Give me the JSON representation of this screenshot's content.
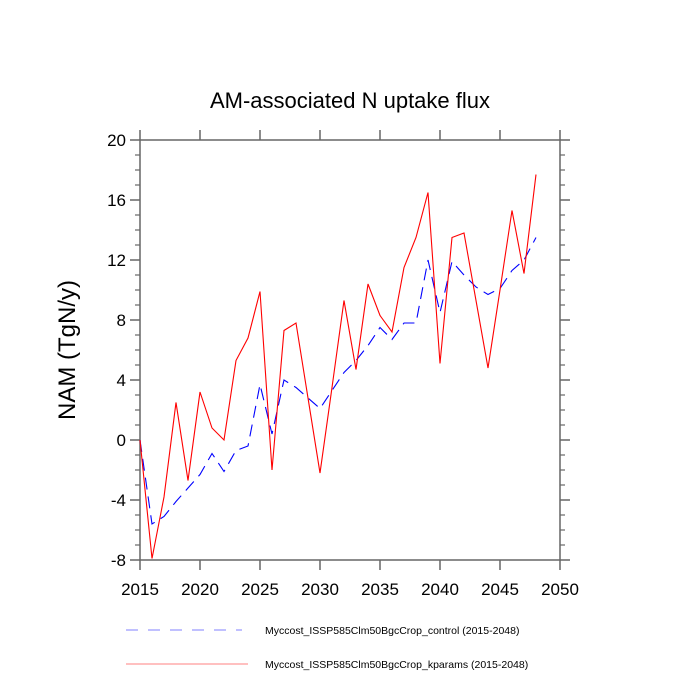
{
  "chart_data": {
    "type": "line",
    "title": "AM-associated N uptake flux",
    "xlabel": "",
    "ylabel": "NAM  (TgN/y)",
    "xlim": [
      2015,
      2050
    ],
    "ylim": [
      -8,
      20
    ],
    "x_ticks": [
      2015,
      2020,
      2025,
      2030,
      2035,
      2040,
      2045,
      2050
    ],
    "x_tick_labels": [
      "2015",
      "2020",
      "2025",
      "2030",
      "2035",
      "2040",
      "2045",
      "2050"
    ],
    "y_ticks": [
      -8,
      -4,
      0,
      4,
      8,
      12,
      16,
      20
    ],
    "y_tick_labels": [
      "-8",
      "-4",
      "0",
      "4",
      "8",
      "12",
      "16",
      "20"
    ],
    "grid": false,
    "legend_position": "bottom",
    "x": [
      2015,
      2016,
      2017,
      2018,
      2019,
      2020,
      2021,
      2022,
      2023,
      2024,
      2025,
      2026,
      2027,
      2028,
      2029,
      2030,
      2031,
      2032,
      2033,
      2034,
      2035,
      2036,
      2037,
      2038,
      2039,
      2040,
      2041,
      2042,
      2043,
      2044,
      2045,
      2046,
      2047,
      2048
    ],
    "series": [
      {
        "name": "Myccost_ISSP585Clm50BgcCrop_control (2015-2048)",
        "color": "#0000ff",
        "style": "dashed",
        "values": [
          0.0,
          -5.6,
          -5.1,
          -4.1,
          -3.2,
          -2.3,
          -0.9,
          -2.1,
          -0.7,
          -0.4,
          3.7,
          0.4,
          4.0,
          3.5,
          2.8,
          2.1,
          3.3,
          4.5,
          5.3,
          6.3,
          7.5,
          6.7,
          7.8,
          7.8,
          12.0,
          8.5,
          11.9,
          11.0,
          10.2,
          9.7,
          10.1,
          11.3,
          12.0,
          13.5
        ]
      },
      {
        "name": "Myccost_ISSP585Clm50BgcCrop_kparams (2015-2048)",
        "color": "#ff0000",
        "style": "solid",
        "values": [
          0.0,
          -7.9,
          -3.8,
          2.5,
          -2.7,
          3.2,
          0.8,
          0.0,
          5.3,
          6.8,
          9.9,
          -2.0,
          7.3,
          7.8,
          2.8,
          -2.2,
          3.5,
          9.3,
          4.7,
          10.4,
          8.3,
          7.2,
          11.5,
          13.5,
          16.5,
          5.1,
          13.5,
          13.8,
          9.3,
          4.8,
          10.0,
          15.3,
          11.1,
          17.7
        ]
      }
    ]
  }
}
